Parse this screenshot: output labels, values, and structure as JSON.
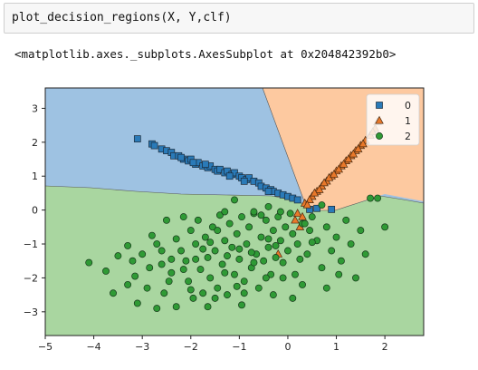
{
  "cell": {
    "code": "plot_decision_regions(X, Y,clf)"
  },
  "output": {
    "text": "<matplotlib.axes._subplots.AxesSubplot at 0x204842392b0>"
  },
  "chart_data": {
    "type": "scatter",
    "title": "",
    "xlabel": "",
    "ylabel": "",
    "xlim": [
      -5,
      2.8
    ],
    "ylim": [
      -3.7,
      3.6
    ],
    "xticks": [
      -5,
      -4,
      -3,
      -2,
      -1,
      0,
      1,
      2
    ],
    "yticks": [
      -3,
      -2,
      -1,
      0,
      1,
      2,
      3
    ],
    "region_colors": {
      "0": "#9ec2e2",
      "1": "#fdc9a0",
      "2": "#a9d6a0"
    },
    "legend": {
      "placement": "top-right",
      "entries": [
        "0",
        "1",
        "2"
      ]
    },
    "series": [
      {
        "name": "0",
        "marker": "square",
        "color": "#2a7ab8",
        "points": [
          [
            -3.1,
            2.1
          ],
          [
            -2.8,
            1.95
          ],
          [
            -2.75,
            1.9
          ],
          [
            -2.6,
            1.8
          ],
          [
            -2.5,
            1.75
          ],
          [
            -2.4,
            1.7
          ],
          [
            -2.35,
            1.6
          ],
          [
            -2.25,
            1.6
          ],
          [
            -2.15,
            1.5
          ],
          [
            -2.05,
            1.45
          ],
          [
            -2.0,
            1.5
          ],
          [
            -1.9,
            1.35
          ],
          [
            -1.85,
            1.4
          ],
          [
            -1.75,
            1.3
          ],
          [
            -1.65,
            1.25
          ],
          [
            -1.6,
            1.3
          ],
          [
            -1.5,
            1.2
          ],
          [
            -1.45,
            1.15
          ],
          [
            -1.4,
            1.2
          ],
          [
            -1.3,
            1.1
          ],
          [
            -1.25,
            1.15
          ],
          [
            -1.15,
            1.05
          ],
          [
            -1.1,
            1.1
          ],
          [
            -1.0,
            1.0
          ],
          [
            -0.95,
            0.95
          ],
          [
            -0.85,
            0.9
          ],
          [
            -0.8,
            0.95
          ],
          [
            -0.7,
            0.85
          ],
          [
            -0.6,
            0.8
          ],
          [
            -0.55,
            0.7
          ],
          [
            -0.45,
            0.65
          ],
          [
            -0.35,
            0.6
          ],
          [
            -0.3,
            0.55
          ],
          [
            -0.2,
            0.5
          ],
          [
            -0.1,
            0.45
          ],
          [
            0.0,
            0.4
          ],
          [
            0.1,
            0.35
          ],
          [
            0.2,
            0.3
          ],
          [
            -1.7,
            1.35
          ],
          [
            -1.2,
            1.0
          ],
          [
            -0.9,
            0.85
          ],
          [
            -0.4,
            0.55
          ],
          [
            -2.2,
            1.55
          ],
          [
            -1.95,
            1.4
          ],
          [
            0.45,
            0.02
          ],
          [
            0.6,
            0.05
          ],
          [
            0.9,
            0.02
          ]
        ]
      },
      {
        "name": "1",
        "marker": "triangle",
        "color": "#e8782a",
        "points": [
          [
            0.35,
            0.2
          ],
          [
            0.5,
            0.4
          ],
          [
            0.6,
            0.55
          ],
          [
            0.7,
            0.7
          ],
          [
            0.8,
            0.85
          ],
          [
            0.9,
            1.0
          ],
          [
            1.0,
            1.15
          ],
          [
            1.1,
            1.3
          ],
          [
            1.2,
            1.45
          ],
          [
            1.3,
            1.6
          ],
          [
            1.4,
            1.75
          ],
          [
            1.5,
            1.9
          ],
          [
            1.6,
            2.05
          ],
          [
            1.7,
            2.2
          ],
          [
            1.8,
            2.4
          ],
          [
            1.85,
            2.6
          ],
          [
            0.45,
            0.3
          ],
          [
            0.65,
            0.6
          ],
          [
            0.85,
            0.95
          ],
          [
            1.05,
            1.2
          ],
          [
            1.25,
            1.5
          ],
          [
            1.45,
            1.8
          ],
          [
            0.2,
            -0.1
          ],
          [
            0.3,
            -0.2
          ],
          [
            0.55,
            0.5
          ],
          [
            0.75,
            0.8
          ],
          [
            0.95,
            1.05
          ],
          [
            1.15,
            1.35
          ],
          [
            1.35,
            1.65
          ],
          [
            1.55,
            1.95
          ],
          [
            1.75,
            2.3
          ],
          [
            0.4,
            0.15
          ],
          [
            0.15,
            -0.3
          ],
          [
            0.25,
            -0.5
          ],
          [
            -0.2,
            -1.3
          ]
        ]
      },
      {
        "name": "2",
        "marker": "circle",
        "color": "#2f9a35",
        "points": [
          [
            -4.1,
            -1.55
          ],
          [
            -3.75,
            -1.8
          ],
          [
            -3.5,
            -1.35
          ],
          [
            -3.3,
            -2.2
          ],
          [
            -3.15,
            -1.95
          ],
          [
            -3.1,
            -2.75
          ],
          [
            -3.0,
            -1.3
          ],
          [
            -2.9,
            -2.3
          ],
          [
            -2.8,
            -0.75
          ],
          [
            -2.7,
            -1.0
          ],
          [
            -2.6,
            -1.6
          ],
          [
            -2.55,
            -2.45
          ],
          [
            -2.5,
            -0.3
          ],
          [
            -2.4,
            -1.85
          ],
          [
            -2.3,
            -2.85
          ],
          [
            -2.2,
            -1.2
          ],
          [
            -2.15,
            -0.2
          ],
          [
            -2.1,
            -1.5
          ],
          [
            -2.05,
            -2.1
          ],
          [
            -2.0,
            -0.6
          ],
          [
            -1.95,
            -2.6
          ],
          [
            -1.9,
            -1.0
          ],
          [
            -1.85,
            -0.3
          ],
          [
            -1.8,
            -1.75
          ],
          [
            -1.75,
            -2.45
          ],
          [
            -1.7,
            -0.8
          ],
          [
            -1.65,
            -1.4
          ],
          [
            -1.6,
            -2.0
          ],
          [
            -1.55,
            -0.5
          ],
          [
            -1.5,
            -1.2
          ],
          [
            -1.45,
            -2.3
          ],
          [
            -1.4,
            -0.15
          ],
          [
            -1.35,
            -1.6
          ],
          [
            -1.3,
            -0.9
          ],
          [
            -1.25,
            -2.5
          ],
          [
            -1.2,
            -0.4
          ],
          [
            -1.15,
            -1.1
          ],
          [
            -1.1,
            -1.9
          ],
          [
            -1.05,
            -0.7
          ],
          [
            -1.0,
            -1.45
          ],
          [
            -0.95,
            -0.2
          ],
          [
            -0.9,
            -2.1
          ],
          [
            -0.85,
            -1.0
          ],
          [
            -0.8,
            -0.5
          ],
          [
            -0.75,
            -1.7
          ],
          [
            -0.7,
            -0.1
          ],
          [
            -0.65,
            -1.3
          ],
          [
            -0.6,
            -2.3
          ],
          [
            -0.55,
            -0.8
          ],
          [
            -0.5,
            -1.5
          ],
          [
            -0.45,
            -0.3
          ],
          [
            -0.4,
            -1.1
          ],
          [
            -0.35,
            -1.9
          ],
          [
            -0.3,
            -0.6
          ],
          [
            -0.25,
            -1.4
          ],
          [
            -0.2,
            -0.2
          ],
          [
            -0.15,
            -0.9
          ],
          [
            -0.1,
            -2.0
          ],
          [
            -0.05,
            -0.5
          ],
          [
            0.0,
            -1.2
          ],
          [
            0.05,
            -0.1
          ],
          [
            0.1,
            -0.7
          ],
          [
            0.2,
            -1.0
          ],
          [
            0.3,
            -0.4
          ],
          [
            0.4,
            -1.3
          ],
          [
            0.5,
            -0.2
          ],
          [
            0.6,
            -0.9
          ],
          [
            0.7,
            -1.7
          ],
          [
            0.8,
            -0.5
          ],
          [
            0.9,
            -1.2
          ],
          [
            1.0,
            -0.8
          ],
          [
            1.1,
            -1.5
          ],
          [
            1.2,
            -0.3
          ],
          [
            1.3,
            -1.0
          ],
          [
            1.4,
            -2.0
          ],
          [
            1.5,
            -0.6
          ],
          [
            1.6,
            -1.3
          ],
          [
            1.7,
            0.35
          ],
          [
            1.85,
            0.35
          ],
          [
            2.0,
            -0.5
          ],
          [
            -1.3,
            -0.05
          ],
          [
            -1.1,
            0.3
          ],
          [
            -0.7,
            -0.05
          ],
          [
            -0.4,
            0.1
          ],
          [
            0.45,
            -0.6
          ],
          [
            0.7,
            0.15
          ],
          [
            0.35,
            -0.4
          ],
          [
            -2.6,
            -1.2
          ],
          [
            -2.3,
            -0.85
          ],
          [
            -1.9,
            -1.45
          ],
          [
            -1.6,
            -0.95
          ],
          [
            -1.3,
            -1.85
          ],
          [
            -1.0,
            -1.15
          ],
          [
            -0.7,
            -1.55
          ],
          [
            -0.4,
            -0.85
          ],
          [
            -0.1,
            -1.55
          ],
          [
            0.15,
            -1.9
          ],
          [
            -3.2,
            -1.5
          ],
          [
            -2.45,
            -2.1
          ],
          [
            -2.0,
            -2.35
          ],
          [
            -1.5,
            -2.6
          ],
          [
            -0.9,
            -2.45
          ],
          [
            -0.3,
            -2.5
          ],
          [
            0.3,
            -2.2
          ],
          [
            0.8,
            -2.3
          ],
          [
            -1.75,
            -1.15
          ],
          [
            -1.25,
            -1.35
          ],
          [
            -0.75,
            -1.25
          ],
          [
            -0.25,
            -1.05
          ],
          [
            0.25,
            -1.45
          ],
          [
            -2.85,
            -1.7
          ],
          [
            -3.6,
            -2.45
          ],
          [
            -2.7,
            -2.9
          ],
          [
            -2.4,
            -1.45
          ],
          [
            -1.45,
            -0.6
          ],
          [
            -0.55,
            -0.15
          ],
          [
            -0.15,
            -0.05
          ],
          [
            0.5,
            -0.95
          ],
          [
            1.05,
            -1.9
          ],
          [
            -0.95,
            -2.8
          ],
          [
            -1.65,
            -2.85
          ],
          [
            -2.15,
            -1.75
          ],
          [
            -1.05,
            -2.25
          ],
          [
            -0.45,
            -2.0
          ],
          [
            0.1,
            -2.6
          ],
          [
            -3.3,
            -1.05
          ]
        ]
      }
    ]
  }
}
